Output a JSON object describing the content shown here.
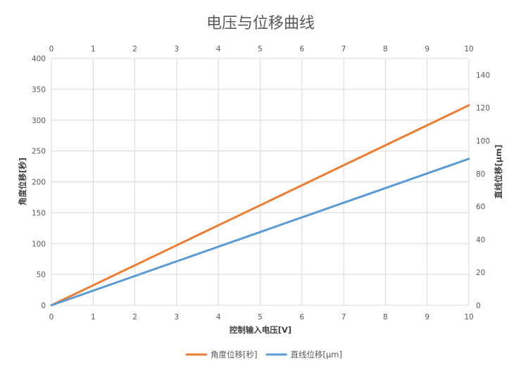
{
  "chart_data": {
    "type": "line",
    "title": "电压与位移曲线",
    "xlabel": "控制输入电压[V]",
    "ylabel_left": "角度位移[秒]",
    "ylabel_right": "直线位移[μm]",
    "x_ticks": [
      "0",
      "1",
      "2",
      "3",
      "4",
      "5",
      "6",
      "7",
      "8",
      "9",
      "10"
    ],
    "x_top_ticks": [
      "0",
      "1",
      "2",
      "3",
      "4",
      "5",
      "6",
      "7",
      "8",
      "9",
      "10"
    ],
    "y_left_ticks": [
      "0",
      "50",
      "100",
      "150",
      "200",
      "250",
      "300",
      "350",
      "400"
    ],
    "y_right_ticks": [
      "0",
      "20",
      "40",
      "60",
      "80",
      "100",
      "120",
      "140"
    ],
    "xlim": [
      0,
      10
    ],
    "ylim_left": [
      0,
      400
    ],
    "ylim_right": [
      0,
      150
    ],
    "grid": true,
    "legend_position": "bottom",
    "series": [
      {
        "name": "角度位移[秒]",
        "axis": "left",
        "color": "#ED7D31",
        "x": [
          0,
          10
        ],
        "y": [
          0,
          324
        ]
      },
      {
        "name": "直线位移[μm]",
        "axis": "right",
        "color": "#5B9BD5",
        "x": [
          0,
          10
        ],
        "y": [
          0,
          89
        ]
      }
    ]
  }
}
